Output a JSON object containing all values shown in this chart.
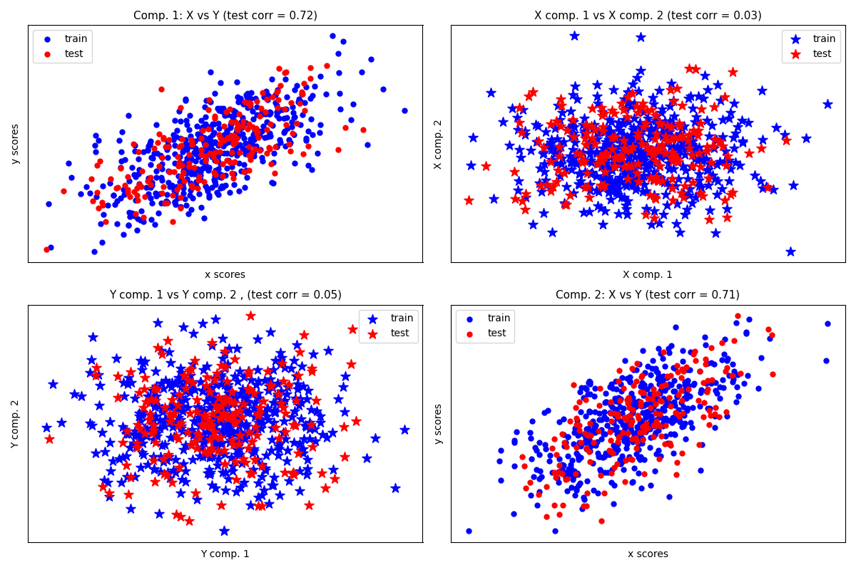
{
  "titles": [
    "Comp. 1: X vs Y (test corr = 0.72)",
    "X comp. 1 vs X comp. 2 (test corr = 0.03)",
    "Y comp. 1 vs Y comp. 2 , (test corr = 0.05)",
    "Comp. 2: X vs Y (test corr = 0.71)"
  ],
  "xlabels": [
    "x scores",
    "X comp. 1",
    "Y comp. 1",
    "x scores"
  ],
  "ylabels": [
    "y scores",
    "X comp. 2",
    "Y comp. 2",
    "y scores"
  ],
  "legend_locs": [
    "upper left",
    "upper right",
    "upper right",
    "upper left"
  ],
  "markers": [
    "o",
    "*",
    "*",
    "o"
  ],
  "train_color": "#0000ff",
  "test_color": "#ff0000",
  "circle_s": 25,
  "star_s": 100,
  "n_train": 500,
  "n_test": 200,
  "n_components": 2,
  "random_seed": 12,
  "figsize": [
    12,
    8
  ],
  "dpi": 100,
  "title_fontsize": 11,
  "label_fontsize": 10,
  "legend_fontsize": 10
}
